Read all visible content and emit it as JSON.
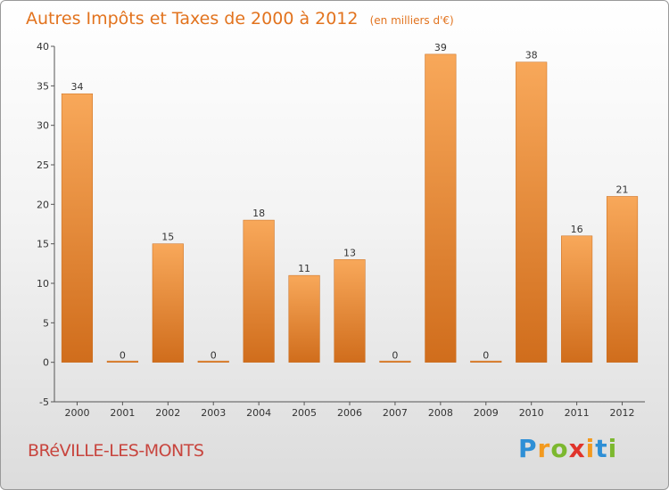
{
  "chart_data": {
    "type": "bar",
    "title": "Autres Impôts et Taxes de 2000 à 2012",
    "unit": "(en milliers d'€)",
    "categories": [
      "2000",
      "2001",
      "2002",
      "2003",
      "2004",
      "2005",
      "2006",
      "2007",
      "2008",
      "2009",
      "2010",
      "2011",
      "2012"
    ],
    "values": [
      34,
      0,
      15,
      0,
      18,
      11,
      13,
      0,
      39,
      0,
      38,
      16,
      21
    ],
    "data_labels": [
      "34",
      "0",
      "15",
      "0",
      "18",
      "11",
      "13",
      "0",
      "39",
      "0",
      "38",
      "16",
      "21"
    ],
    "ylim": [
      -5,
      40
    ],
    "yticks": [
      -5,
      0,
      5,
      10,
      15,
      20,
      25,
      30,
      35,
      40
    ],
    "ytick_labels": [
      "-5",
      "0",
      "5",
      "10",
      "15",
      "20",
      "25",
      "30",
      "35",
      "40"
    ],
    "grid": false,
    "bar_color_light": "#f8a85a",
    "bar_color_dark": "#d06d1c"
  },
  "commune": "BRéVILLE-LES-MONTS",
  "logo": {
    "letters": [
      "P",
      "r",
      "o",
      "x",
      "i",
      "t",
      "i"
    ],
    "colors": [
      "#2e8fd6",
      "#f39a1f",
      "#7cb82f",
      "#e0342b",
      "#f39a1f",
      "#2e8fd6",
      "#7cb82f"
    ]
  }
}
